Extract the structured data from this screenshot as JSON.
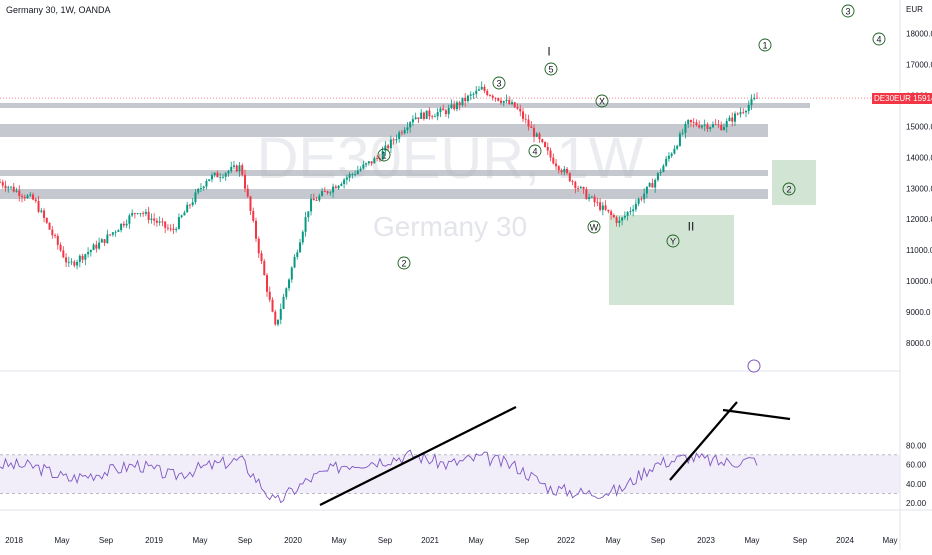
{
  "header": {
    "title": "Germany 30, 1W, OANDA"
  },
  "watermark": {
    "symbol": "DE30EUR, 1W",
    "name": "Germany 30"
  },
  "price_axis": {
    "unit": "EUR",
    "ticks": [
      "18000.0",
      "17000.0",
      "16000.0",
      "15000.0",
      "14000.0",
      "13000.0",
      "12000.0",
      "11000.0",
      "10000.0",
      "9000.0",
      "8000.0"
    ]
  },
  "rsi_axis": {
    "ticks": [
      "80.00",
      "60.00",
      "40.00",
      "20.00"
    ]
  },
  "time_axis": {
    "ticks": [
      "2018",
      "May",
      "Sep",
      "2019",
      "May",
      "Sep",
      "2020",
      "May",
      "Sep",
      "2021",
      "May",
      "Sep",
      "2022",
      "May",
      "Sep",
      "2023",
      "May",
      "Sep",
      "2024",
      "May"
    ]
  },
  "last_price": {
    "symbol": "DE30EUR",
    "value": "15914.6"
  },
  "wave_labels": [
    "1",
    "2",
    "3",
    "4",
    "5",
    "W",
    "X",
    "Y",
    "I",
    "II",
    "1",
    "2",
    "3",
    "4"
  ],
  "colors": {
    "up": "#089981",
    "down": "#f23645",
    "rsi": "#7e57c2",
    "rsi_band": "#ede7f6",
    "zone": "#a5c9a8",
    "band": "#b2b5be"
  },
  "chart_data": [
    {
      "type": "candlestick",
      "title": "Germany 30, 1W, OANDA",
      "ylabel": "EUR",
      "ylim": [
        7700,
        18700
      ],
      "x": [
        "2018-01",
        "2018-06",
        "2018-12",
        "2019-02",
        "2019-05",
        "2019-08",
        "2019-12",
        "2020-02",
        "2020-03",
        "2020-06",
        "2020-11",
        "2021-01",
        "2021-04",
        "2021-09",
        "2021-11",
        "2022-01",
        "2022-03",
        "2022-06",
        "2022-09",
        "2022-10",
        "2023-01",
        "2023-03",
        "2023-04"
      ],
      "close": [
        13200,
        12600,
        10500,
        11300,
        12300,
        11600,
        13300,
        13700,
        8500,
        12500,
        13300,
        14000,
        15300,
        15500,
        16200,
        15600,
        14000,
        12800,
        11900,
        13200,
        15100,
        15000,
        15914.6
      ],
      "last_price": 15914.6,
      "series": [
        {
          "name": "DE30EUR",
          "values": [
            13200,
            12600,
            10500,
            11300,
            12300,
            11600,
            13300,
            13700,
            8500,
            12500,
            13300,
            14000,
            15300,
            15500,
            16200,
            15600,
            14000,
            12800,
            11900,
            13200,
            15100,
            15000,
            15914.6
          ]
        }
      ]
    },
    {
      "type": "line",
      "ylim": [
        17,
        87
      ],
      "series": [
        {
          "values": [
            60,
            58,
            45,
            52,
            60,
            48,
            58,
            65,
            20,
            45,
            60,
            64,
            70,
            60,
            68,
            58,
            35,
            30,
            33,
            60,
            68,
            62,
            65
          ]
        }
      ],
      "levels": [
        70,
        30
      ]
    }
  ]
}
